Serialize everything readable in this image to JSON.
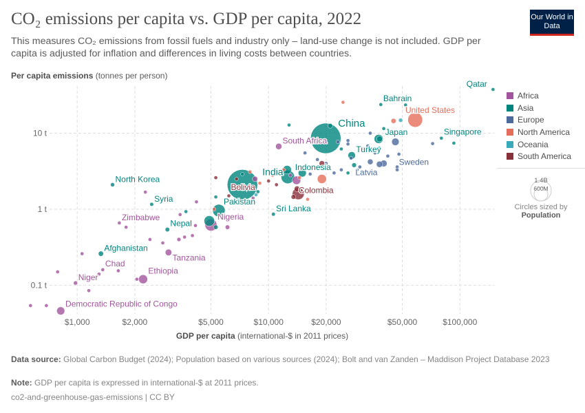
{
  "title": "CO₂ emissions per capita vs. GDP per capita, 2022",
  "subtitle": "This measures CO₂ emissions from fossil fuels and industry only – land-use change is not included. GDP per capita is adjusted for inflation and differences in living costs between countries.",
  "logo": "Our World in Data",
  "chart_data": {
    "type": "scatter",
    "title": "CO₂ emissions per capita vs. GDP per capita, 2022",
    "xlabel_bold": "GDP per capita",
    "xlabel_rest": " (international-$ in 2011 prices)",
    "ylabel_bold": "Per capita emissions",
    "ylabel_rest": " (tonnes per person)",
    "x_scale": "log",
    "y_scale": "log",
    "xlim": [
      550,
      151000
    ],
    "ylim": [
      0.042,
      41.7
    ],
    "x_ticks": [
      {
        "v": 1000,
        "label": "$1,000"
      },
      {
        "v": 2000,
        "label": "$2,000"
      },
      {
        "v": 5000,
        "label": "$5,000"
      },
      {
        "v": 10000,
        "label": "$10,000"
      },
      {
        "v": 20000,
        "label": "$20,000"
      },
      {
        "v": 50000,
        "label": "$50,000"
      },
      {
        "v": 100000,
        "label": "$100,000"
      }
    ],
    "y_ticks": [
      {
        "v": 0.1,
        "label": "0.1 t"
      },
      {
        "v": 1,
        "label": "1 t"
      },
      {
        "v": 10,
        "label": "10 t"
      }
    ],
    "grid": true,
    "legend_position": "right",
    "colors": {
      "Africa": "#a2559c",
      "Asia": "#00847e",
      "Europe": "#4c6a9c",
      "North America": "#e56e5a",
      "Oceania": "#38aaba",
      "South America": "#883039"
    },
    "legend": [
      "Africa",
      "Asia",
      "Europe",
      "North America",
      "Oceania",
      "South America"
    ],
    "size_legend": {
      "large": "1.4B",
      "small": "600M",
      "caption": "Circles sized by",
      "variable": "Population"
    },
    "points": [
      {
        "name": "Qatar",
        "gdp": 149000,
        "co2": 37.6,
        "region": "Asia",
        "pop": 2700000.0,
        "label": true
      },
      {
        "name": "Bahrain",
        "gdp": 38600,
        "co2": 23.8,
        "region": "Asia",
        "pop": 1500000.0,
        "label": true
      },
      {
        "name": "United States",
        "gdp": 58400,
        "co2": 15.0,
        "region": "North America",
        "pop": 335000000.0,
        "label": true
      },
      {
        "name": "China",
        "gdp": 19900,
        "co2": 8.55,
        "region": "Asia",
        "pop": 1420000000.0,
        "label": true
      },
      {
        "name": "Japan",
        "gdp": 37600,
        "co2": 8.4,
        "region": "Asia",
        "pop": 124000000.0,
        "label": true
      },
      {
        "name": "Singapore",
        "gdp": 80000,
        "co2": 8.6,
        "region": "Asia",
        "pop": 5600000.0,
        "label": true
      },
      {
        "name": "South Africa",
        "gdp": 11300,
        "co2": 6.7,
        "region": "Africa",
        "pop": 60000000.0,
        "label": true
      },
      {
        "name": "Turkey",
        "gdp": 27200,
        "co2": 5.1,
        "region": "Asia",
        "pop": 85000000.0,
        "label": true
      },
      {
        "name": "Latvia",
        "gdp": 29000,
        "co2": 3.3,
        "region": "Europe",
        "pop": 1900000.0,
        "label": true
      },
      {
        "name": "Sweden",
        "gdp": 47000,
        "co2": 3.6,
        "region": "Europe",
        "pop": 10500000.0,
        "label": true
      },
      {
        "name": "India",
        "gdp": 7300,
        "co2": 2.1,
        "region": "Asia",
        "pop": 1420000000.0,
        "label": true
      },
      {
        "name": "Indonesia",
        "gdp": 12600,
        "co2": 2.66,
        "region": "Asia",
        "pop": 275000000.0,
        "label": true
      },
      {
        "name": "Bolivia",
        "gdp": 7100,
        "co2": 1.95,
        "region": "South America",
        "pop": 12000000.0,
        "label": true
      },
      {
        "name": "Colombia",
        "gdp": 14100,
        "co2": 1.85,
        "region": "South America",
        "pop": 52000000.0,
        "label": true
      },
      {
        "name": "North Korea",
        "gdp": 1530,
        "co2": 2.1,
        "region": "Asia",
        "pop": 26000000.0,
        "label": true
      },
      {
        "name": "Syria",
        "gdp": 2450,
        "co2": 1.16,
        "region": "Asia",
        "pop": 22000000.0,
        "label": true
      },
      {
        "name": "Pakistan",
        "gdp": 5500,
        "co2": 0.96,
        "region": "Asia",
        "pop": 236000000.0,
        "label": true
      },
      {
        "name": "Sri Lanka",
        "gdp": 10600,
        "co2": 0.86,
        "region": "Asia",
        "pop": 22000000.0,
        "label": true
      },
      {
        "name": "Nigeria",
        "gdp": 5000,
        "co2": 0.62,
        "region": "Africa",
        "pop": 219000000.0,
        "label": true
      },
      {
        "name": "Zimbabwe",
        "gdp": 1660,
        "co2": 0.66,
        "region": "Africa",
        "pop": 16000000.0,
        "label": true
      },
      {
        "name": "Nepal",
        "gdp": 2960,
        "co2": 0.54,
        "region": "Asia",
        "pop": 30000000.0,
        "label": true
      },
      {
        "name": "Tanzania",
        "gdp": 3000,
        "co2": 0.27,
        "region": "Africa",
        "pop": 65000000.0,
        "label": true
      },
      {
        "name": "Afghanistan",
        "gdp": 1330,
        "co2": 0.26,
        "region": "Asia",
        "pop": 41000000.0,
        "label": true
      },
      {
        "name": "Chad",
        "gdp": 1360,
        "co2": 0.16,
        "region": "Africa",
        "pop": 18000000.0,
        "label": true
      },
      {
        "name": "Niger",
        "gdp": 980,
        "co2": 0.107,
        "region": "Africa",
        "pop": 26000000.0,
        "label": true
      },
      {
        "name": "Ethiopia",
        "gdp": 2210,
        "co2": 0.12,
        "region": "Africa",
        "pop": 123000000.0,
        "label": true
      },
      {
        "name": "Democratic Republic of Congo",
        "gdp": 820,
        "co2": 0.046,
        "region": "Africa",
        "pop": 100000000.0,
        "label": true
      },
      {
        "gdp": 570,
        "co2": 0.054,
        "region": "Africa",
        "pop": 6000000.0
      },
      {
        "gdp": 690,
        "co2": 0.054,
        "region": "Africa",
        "pop": 6000000.0
      },
      {
        "gdp": 790,
        "co2": 0.15,
        "region": "Africa",
        "pop": 6000000.0
      },
      {
        "gdp": 1060,
        "co2": 0.26,
        "region": "Africa",
        "pop": 15000000.0
      },
      {
        "gdp": 1150,
        "co2": 0.085,
        "region": "Africa",
        "pop": 6000000.0
      },
      {
        "gdp": 1640,
        "co2": 0.155,
        "region": "Africa",
        "pop": 6000000.0
      },
      {
        "gdp": 1300,
        "co2": 0.14,
        "region": "Africa",
        "pop": 10000000.0
      },
      {
        "gdp": 1800,
        "co2": 0.58,
        "region": "Africa",
        "pop": 6000000.0
      },
      {
        "gdp": 2270,
        "co2": 1.68,
        "region": "Africa",
        "pop": 6000000.0
      },
      {
        "gdp": 2050,
        "co2": 0.12,
        "region": "Africa",
        "pop": 20000000.0
      },
      {
        "gdp": 2400,
        "co2": 0.4,
        "region": "Africa",
        "pop": 6000000.0
      },
      {
        "gdp": 2800,
        "co2": 0.36,
        "region": "Africa",
        "pop": 12000000.0
      },
      {
        "gdp": 3400,
        "co2": 0.4,
        "region": "Africa",
        "pop": 25000000.0
      },
      {
        "gdp": 3640,
        "co2": 0.43,
        "region": "Africa",
        "pop": 8000000.0
      },
      {
        "gdp": 3450,
        "co2": 0.85,
        "region": "Africa",
        "pop": 6000000.0
      },
      {
        "gdp": 4150,
        "co2": 0.61,
        "region": "Africa",
        "pop": 15000000.0
      },
      {
        "gdp": 4200,
        "co2": 1.25,
        "region": "Africa",
        "pop": 6000000.0
      },
      {
        "gdp": 4000,
        "co2": 0.45,
        "region": "Africa",
        "pop": 10000000.0
      },
      {
        "gdp": 6100,
        "co2": 0.58,
        "region": "Africa",
        "pop": 30000000.0
      },
      {
        "gdp": 8300,
        "co2": 1.4,
        "region": "Africa",
        "pop": 6000000.0
      },
      {
        "gdp": 8500,
        "co2": 2.5,
        "region": "Africa",
        "pop": 45000000.0
      },
      {
        "gdp": 13000,
        "co2": 2.8,
        "region": "Africa",
        "pop": 8000000.0
      },
      {
        "gdp": 14000,
        "co2": 2.4,
        "region": "Africa",
        "pop": 110000000.0
      },
      {
        "gdp": 3700,
        "co2": 0.93,
        "region": "Asia",
        "pop": 6000000.0
      },
      {
        "gdp": 5300,
        "co2": 1.45,
        "region": "Asia",
        "pop": 6000000.0
      },
      {
        "gdp": 4900,
        "co2": 0.7,
        "region": "Asia",
        "pop": 170000000.0
      },
      {
        "gdp": 5300,
        "co2": 0.58,
        "region": "Asia",
        "pop": 30000000.0
      },
      {
        "gdp": 8800,
        "co2": 1.7,
        "region": "Asia",
        "pop": 6000000.0
      },
      {
        "gdp": 7300,
        "co2": 2.9,
        "region": "Asia",
        "pop": 6000000.0
      },
      {
        "gdp": 12800,
        "co2": 12.8,
        "region": "Asia",
        "pop": 6000000.0
      },
      {
        "gdp": 12500,
        "co2": 3.3,
        "region": "Asia",
        "pop": 115000000.0
      },
      {
        "gdp": 15000,
        "co2": 3.0,
        "region": "Asia",
        "pop": 100000000.0
      },
      {
        "gdp": 28000,
        "co2": 3.8,
        "region": "Asia",
        "pop": 33000000.0
      },
      {
        "gdp": 40000,
        "co2": 11.5,
        "region": "Asia",
        "pop": 10000000.0
      },
      {
        "gdp": 52000,
        "co2": 23.5,
        "region": "Asia",
        "pop": 6000000.0
      },
      {
        "gdp": 62000,
        "co2": 20,
        "region": "Asia",
        "pop": 5000000.0
      },
      {
        "gdp": 38000,
        "co2": 8.4,
        "region": "Asia",
        "pop": 52000000.0
      },
      {
        "gdp": 24000,
        "co2": 6.2,
        "region": "Asia",
        "pop": 6000000.0
      },
      {
        "gdp": 21000,
        "co2": 12.5,
        "region": "Asia",
        "pop": 35000000.0
      },
      {
        "gdp": 93000,
        "co2": 7.4,
        "region": "Asia",
        "pop": 6000000.0
      },
      {
        "gdp": 26000,
        "co2": 3.0,
        "region": "Asia",
        "pop": 6000000.0
      },
      {
        "gdp": 23000,
        "co2": 7.7,
        "region": "Europe",
        "pop": 8000000.0
      },
      {
        "gdp": 26000,
        "co2": 8.0,
        "region": "Europe",
        "pop": 10000000.0
      },
      {
        "gdp": 26000,
        "co2": 7.2,
        "region": "Europe",
        "pop": 15000000.0
      },
      {
        "gdp": 31000,
        "co2": 6.3,
        "region": "Europe",
        "pop": 6000000.0
      },
      {
        "gdp": 33000,
        "co2": 6.8,
        "region": "Europe",
        "pop": 8000000.0
      },
      {
        "gdp": 36000,
        "co2": 5.5,
        "region": "Europe",
        "pop": 6000000.0
      },
      {
        "gdp": 46000,
        "co2": 7.7,
        "region": "Europe",
        "pop": 84000000.0
      },
      {
        "gdp": 42000,
        "co2": 5.0,
        "region": "Europe",
        "pop": 9000000.0
      },
      {
        "gdp": 48000,
        "co2": 5.3,
        "region": "Europe",
        "pop": 8000000.0
      },
      {
        "gdp": 57000,
        "co2": 4.2,
        "region": "Europe",
        "pop": 6000000.0
      },
      {
        "gdp": 34000,
        "co2": 4.2,
        "region": "Europe",
        "pop": 48000000.0
      },
      {
        "gdp": 40000,
        "co2": 4.0,
        "region": "Europe",
        "pop": 67000000.0
      },
      {
        "gdp": 38000,
        "co2": 3.9,
        "region": "Europe",
        "pop": 60000000.0
      },
      {
        "gdp": 27000,
        "co2": 4.7,
        "region": "Europe",
        "pop": 8000000.0
      },
      {
        "gdp": 30000,
        "co2": 3.6,
        "region": "Europe",
        "pop": 6000000.0
      },
      {
        "gdp": 22000,
        "co2": 3.0,
        "region": "Europe",
        "pop": 6000000.0
      },
      {
        "gdp": 20000,
        "co2": 4.0,
        "region": "Europe",
        "pop": 6000000.0
      },
      {
        "gdp": 18000,
        "co2": 4.5,
        "region": "Europe",
        "pop": 6000000.0
      },
      {
        "gdp": 15500,
        "co2": 5.5,
        "region": "Europe",
        "pop": 6000000.0
      },
      {
        "gdp": 34000,
        "co2": 10.0,
        "region": "Europe",
        "pop": 6000000.0
      },
      {
        "gdp": 72000,
        "co2": 7.3,
        "region": "Europe",
        "pop": 6000000.0
      },
      {
        "gdp": 47000,
        "co2": 3.3,
        "region": "Europe",
        "pop": 6000000.0
      },
      {
        "gdp": 16500,
        "co2": 2.9,
        "region": "Europe",
        "pop": 6000000.0
      },
      {
        "gdp": 24000,
        "co2": 3.3,
        "region": "Europe",
        "pop": 6000000.0
      },
      {
        "gdp": 45000,
        "co2": 14.5,
        "region": "North America",
        "pop": 39000000.0
      },
      {
        "gdp": 19000,
        "co2": 2.5,
        "region": "North America",
        "pop": 128000000.0
      },
      {
        "gdp": 24500,
        "co2": 25.5,
        "region": "North America",
        "pop": 6000000.0
      },
      {
        "gdp": 12000,
        "co2": 3.3,
        "region": "North America",
        "pop": 6000000.0
      },
      {
        "gdp": 14500,
        "co2": 2.6,
        "region": "North America",
        "pop": 6000000.0
      },
      {
        "gdp": 16000,
        "co2": 1.35,
        "region": "North America",
        "pop": 6000000.0
      },
      {
        "gdp": 10500,
        "co2": 2.8,
        "region": "North America",
        "pop": 6000000.0
      },
      {
        "gdp": 9000,
        "co2": 2.2,
        "region": "North America",
        "pop": 6000000.0
      },
      {
        "gdp": 5200,
        "co2": 1.0,
        "region": "North America",
        "pop": 6000000.0
      },
      {
        "gdp": 8000,
        "co2": 3.1,
        "region": "North America",
        "pop": 6000000.0
      },
      {
        "gdp": 49000,
        "co2": 14.8,
        "region": "Oceania",
        "pop": 26000000.0
      },
      {
        "gdp": 38000,
        "co2": 6.4,
        "region": "Oceania",
        "pop": 5000000.0
      },
      {
        "gdp": 8600,
        "co2": 1.55,
        "region": "Oceania",
        "pop": 6000000.0
      },
      {
        "gdp": 5300,
        "co2": 2.6,
        "region": "South America",
        "pop": 6000000.0
      },
      {
        "gdp": 6800,
        "co2": 2.5,
        "region": "South America",
        "pop": 6000000.0
      },
      {
        "gdp": 14300,
        "co2": 1.6,
        "region": "South America",
        "pop": 215000000.0
      },
      {
        "gdp": 13500,
        "co2": 1.45,
        "region": "South America",
        "pop": 34000000.0
      },
      {
        "gdp": 11000,
        "co2": 2.1,
        "region": "South America",
        "pop": 18000000.0
      },
      {
        "gdp": 10000,
        "co2": 2.35,
        "region": "South America",
        "pop": 6000000.0
      },
      {
        "gdp": 19000,
        "co2": 4.0,
        "region": "South America",
        "pop": 46000000.0
      },
      {
        "gdp": 6200,
        "co2": 1.5,
        "region": "South America",
        "pop": 6000000.0
      }
    ]
  },
  "footer": {
    "source_label": "Data source:",
    "source": " Global Carbon Budget (2024); Population based on various sources (2024); Bolt and van Zanden – Maddison Project Database 2023",
    "note_label": "Note:",
    "note": " GDP per capita is expressed in international-$ at 2011 prices.",
    "license": "co2-and-greenhouse-gas-emissions | CC BY"
  }
}
